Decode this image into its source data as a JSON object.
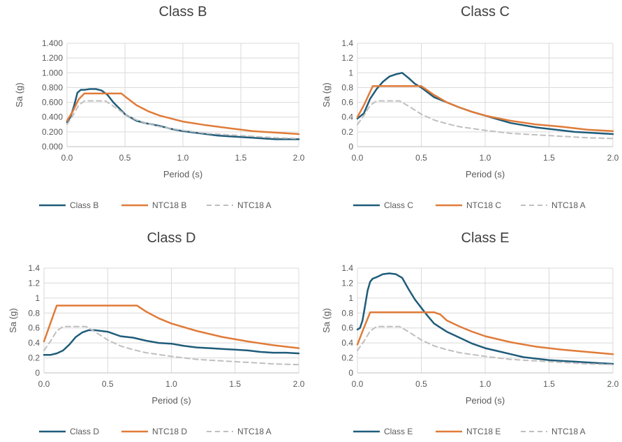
{
  "colors": {
    "measured": "#1F5C7A",
    "ntc": "#E07B39",
    "ntcA": "#BFBFBF",
    "grid": "#D9D9D9",
    "axis": "#BFBFBF"
  },
  "chart_data": [
    {
      "type": "line",
      "title": "Class B",
      "xlabel": "Period (s)",
      "ylabel": "Sa (g)",
      "xlim": [
        0,
        2.0
      ],
      "ylim": [
        0,
        1.4
      ],
      "xticks": [
        "0.0",
        "0.5",
        "1.0",
        "1.5",
        "2.0"
      ],
      "yticks": [
        "0.000",
        "0.200",
        "0.400",
        "0.600",
        "0.800",
        "1.000",
        "1.200",
        "1.400"
      ],
      "legend": [
        "Class B",
        "NTC18 B",
        "NTC18 A"
      ],
      "series": [
        {
          "name": "Class B",
          "style": "measured",
          "x": [
            0,
            0.03,
            0.06,
            0.09,
            0.12,
            0.15,
            0.2,
            0.25,
            0.3,
            0.35,
            0.4,
            0.45,
            0.5,
            0.6,
            0.7,
            0.8,
            0.9,
            1.0,
            1.1,
            1.2,
            1.3,
            1.4,
            1.5,
            1.6,
            1.7,
            1.8,
            1.9,
            2.0
          ],
          "y": [
            0.33,
            0.4,
            0.55,
            0.73,
            0.77,
            0.77,
            0.78,
            0.78,
            0.76,
            0.7,
            0.6,
            0.52,
            0.44,
            0.35,
            0.31,
            0.28,
            0.24,
            0.21,
            0.19,
            0.17,
            0.15,
            0.14,
            0.13,
            0.12,
            0.11,
            0.1,
            0.1,
            0.1
          ]
        },
        {
          "name": "NTC18 B",
          "style": "ntc",
          "x": [
            0,
            0.05,
            0.1,
            0.15,
            0.2,
            0.3,
            0.4,
            0.47,
            0.5,
            0.6,
            0.7,
            0.8,
            0.9,
            1.0,
            1.2,
            1.4,
            1.6,
            1.8,
            2.0
          ],
          "y": [
            0.35,
            0.48,
            0.64,
            0.72,
            0.72,
            0.72,
            0.72,
            0.72,
            0.68,
            0.56,
            0.48,
            0.42,
            0.38,
            0.34,
            0.29,
            0.25,
            0.21,
            0.19,
            0.17
          ]
        },
        {
          "name": "NTC18 A",
          "style": "ntcA",
          "x": [
            0,
            0.05,
            0.1,
            0.15,
            0.2,
            0.25,
            0.3,
            0.33,
            0.4,
            0.5,
            0.6,
            0.7,
            0.8,
            1.0,
            1.2,
            1.4,
            1.6,
            1.8,
            2.0
          ],
          "y": [
            0.3,
            0.42,
            0.56,
            0.62,
            0.62,
            0.62,
            0.62,
            0.62,
            0.55,
            0.44,
            0.36,
            0.31,
            0.27,
            0.22,
            0.18,
            0.16,
            0.14,
            0.12,
            0.11
          ]
        }
      ]
    },
    {
      "type": "line",
      "title": "Class C",
      "xlabel": "Period (s)",
      "ylabel": "Sa (g)",
      "xlim": [
        0,
        2.0
      ],
      "ylim": [
        0,
        1.4
      ],
      "xticks": [
        "0.0",
        "0.5",
        "1.0",
        "1.5",
        "2.0"
      ],
      "yticks": [
        "0",
        "0.2",
        "0.4",
        "0.6",
        "0.8",
        "1",
        "1.2",
        "1.4"
      ],
      "legend": [
        "Class C",
        "NTC18 C",
        "NTC18 A"
      ],
      "series": [
        {
          "name": "Class C",
          "style": "measured",
          "x": [
            0,
            0.05,
            0.1,
            0.15,
            0.2,
            0.25,
            0.3,
            0.35,
            0.4,
            0.45,
            0.5,
            0.6,
            0.7,
            0.8,
            0.9,
            1.0,
            1.1,
            1.2,
            1.3,
            1.4,
            1.5,
            1.6,
            1.7,
            1.8,
            1.9,
            2.0
          ],
          "y": [
            0.38,
            0.45,
            0.65,
            0.78,
            0.88,
            0.95,
            0.98,
            1.0,
            0.93,
            0.85,
            0.8,
            0.67,
            0.6,
            0.53,
            0.47,
            0.42,
            0.37,
            0.32,
            0.29,
            0.26,
            0.24,
            0.22,
            0.2,
            0.19,
            0.18,
            0.17
          ]
        },
        {
          "name": "NTC18 C",
          "style": "ntc",
          "x": [
            0,
            0.05,
            0.12,
            0.2,
            0.3,
            0.4,
            0.5,
            0.6,
            0.7,
            0.8,
            0.9,
            1.0,
            1.2,
            1.4,
            1.6,
            1.8,
            2.0
          ],
          "y": [
            0.4,
            0.56,
            0.82,
            0.82,
            0.82,
            0.82,
            0.82,
            0.7,
            0.6,
            0.53,
            0.47,
            0.42,
            0.35,
            0.3,
            0.27,
            0.23,
            0.21
          ]
        },
        {
          "name": "NTC18 A",
          "style": "ntcA",
          "x": [
            0,
            0.05,
            0.1,
            0.15,
            0.2,
            0.25,
            0.3,
            0.33,
            0.4,
            0.5,
            0.6,
            0.7,
            0.8,
            1.0,
            1.2,
            1.4,
            1.6,
            1.8,
            2.0
          ],
          "y": [
            0.3,
            0.42,
            0.56,
            0.62,
            0.62,
            0.62,
            0.62,
            0.62,
            0.55,
            0.44,
            0.36,
            0.31,
            0.27,
            0.22,
            0.18,
            0.16,
            0.14,
            0.12,
            0.11
          ]
        }
      ]
    },
    {
      "type": "line",
      "title": "Class D",
      "xlabel": "Period (s)",
      "ylabel": "Sa (g)",
      "xlim": [
        0,
        2.0
      ],
      "ylim": [
        0,
        1.4
      ],
      "xticks": [
        "0.0",
        "0.5",
        "1.0",
        "1.5",
        "2.0"
      ],
      "yticks": [
        "0",
        "0.2",
        "0.4",
        "0.6",
        "0.8",
        "1",
        "1.2",
        "1.4"
      ],
      "legend": [
        "Class D",
        "NTC18 D",
        "NTC18 A"
      ],
      "series": [
        {
          "name": "Class D",
          "style": "measured",
          "x": [
            0,
            0.05,
            0.1,
            0.15,
            0.2,
            0.25,
            0.3,
            0.35,
            0.4,
            0.5,
            0.6,
            0.7,
            0.8,
            0.9,
            1.0,
            1.1,
            1.2,
            1.3,
            1.4,
            1.5,
            1.6,
            1.7,
            1.8,
            1.9,
            2.0
          ],
          "y": [
            0.24,
            0.24,
            0.26,
            0.3,
            0.38,
            0.48,
            0.54,
            0.57,
            0.57,
            0.55,
            0.49,
            0.47,
            0.43,
            0.4,
            0.39,
            0.36,
            0.34,
            0.33,
            0.32,
            0.31,
            0.3,
            0.28,
            0.27,
            0.27,
            0.26
          ]
        },
        {
          "name": "NTC18 D",
          "style": "ntc",
          "x": [
            0,
            0.05,
            0.1,
            0.2,
            0.3,
            0.4,
            0.5,
            0.6,
            0.7,
            0.73,
            0.8,
            0.9,
            1.0,
            1.2,
            1.4,
            1.6,
            1.8,
            2.0
          ],
          "y": [
            0.42,
            0.66,
            0.9,
            0.9,
            0.9,
            0.9,
            0.9,
            0.9,
            0.9,
            0.9,
            0.82,
            0.73,
            0.66,
            0.56,
            0.48,
            0.42,
            0.37,
            0.33
          ]
        },
        {
          "name": "NTC18 A",
          "style": "ntcA",
          "x": [
            0,
            0.05,
            0.1,
            0.15,
            0.2,
            0.25,
            0.3,
            0.33,
            0.4,
            0.5,
            0.6,
            0.7,
            0.8,
            1.0,
            1.2,
            1.4,
            1.6,
            1.8,
            2.0
          ],
          "y": [
            0.3,
            0.42,
            0.56,
            0.62,
            0.62,
            0.62,
            0.62,
            0.62,
            0.55,
            0.44,
            0.36,
            0.31,
            0.27,
            0.22,
            0.18,
            0.16,
            0.14,
            0.12,
            0.11
          ]
        }
      ]
    },
    {
      "type": "line",
      "title": "Class E",
      "xlabel": "Period (s)",
      "ylabel": "Sa (g)",
      "xlim": [
        0,
        2.0
      ],
      "ylim": [
        0,
        1.4
      ],
      "xticks": [
        "0.0",
        "0.5",
        "1.0",
        "1.5",
        "2.0"
      ],
      "yticks": [
        "0",
        "0.2",
        "0.4",
        "0.6",
        "0.8",
        "1",
        "1.2",
        "1.4"
      ],
      "legend": [
        "Class E",
        "NTC18 E",
        "NTC18 A"
      ],
      "series": [
        {
          "name": "Class E",
          "style": "measured",
          "x": [
            0,
            0.02,
            0.04,
            0.06,
            0.08,
            0.1,
            0.12,
            0.15,
            0.2,
            0.25,
            0.3,
            0.35,
            0.4,
            0.45,
            0.5,
            0.55,
            0.6,
            0.7,
            0.8,
            0.9,
            1.0,
            1.1,
            1.2,
            1.3,
            1.4,
            1.5,
            1.6,
            1.7,
            1.8,
            1.9,
            2.0
          ],
          "y": [
            0.58,
            0.6,
            0.7,
            0.9,
            1.1,
            1.22,
            1.26,
            1.28,
            1.32,
            1.33,
            1.32,
            1.27,
            1.12,
            0.98,
            0.87,
            0.76,
            0.66,
            0.55,
            0.47,
            0.39,
            0.33,
            0.29,
            0.25,
            0.21,
            0.19,
            0.17,
            0.16,
            0.15,
            0.14,
            0.13,
            0.12
          ]
        },
        {
          "name": "NTC18 E",
          "style": "ntc",
          "x": [
            0,
            0.05,
            0.1,
            0.2,
            0.3,
            0.4,
            0.5,
            0.55,
            0.6,
            0.65,
            0.7,
            0.8,
            0.9,
            1.0,
            1.2,
            1.4,
            1.6,
            1.8,
            2.0
          ],
          "y": [
            0.38,
            0.6,
            0.81,
            0.81,
            0.81,
            0.81,
            0.81,
            0.81,
            0.81,
            0.78,
            0.7,
            0.62,
            0.55,
            0.49,
            0.41,
            0.35,
            0.31,
            0.28,
            0.25
          ]
        },
        {
          "name": "NTC18 A",
          "style": "ntcA",
          "x": [
            0,
            0.05,
            0.1,
            0.15,
            0.2,
            0.25,
            0.3,
            0.33,
            0.4,
            0.5,
            0.6,
            0.7,
            0.8,
            1.0,
            1.2,
            1.4,
            1.6,
            1.8,
            2.0
          ],
          "y": [
            0.3,
            0.42,
            0.56,
            0.62,
            0.62,
            0.62,
            0.62,
            0.62,
            0.55,
            0.44,
            0.36,
            0.31,
            0.27,
            0.22,
            0.18,
            0.16,
            0.14,
            0.12,
            0.11
          ]
        }
      ]
    }
  ]
}
